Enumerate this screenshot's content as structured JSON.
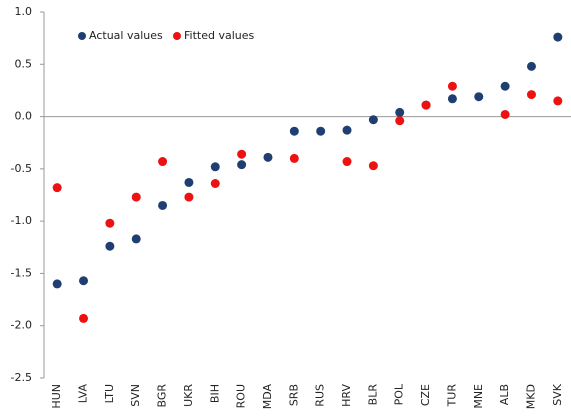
{
  "chart_data": {
    "type": "dot",
    "categories": [
      "HUN",
      "LVA",
      "LTU",
      "SVN",
      "BGR",
      "UKR",
      "BIH",
      "ROU",
      "MDA",
      "SRB",
      "RUS",
      "HRV",
      "BLR",
      "POL",
      "CZE",
      "TUR",
      "MNE",
      "ALB",
      "MKD",
      "SVK"
    ],
    "series": [
      {
        "name": "Actual values",
        "color": "#1f3f73",
        "values": [
          -1.6,
          -1.57,
          -1.24,
          -1.17,
          -0.85,
          -0.63,
          -0.48,
          -0.46,
          -0.39,
          -0.14,
          -0.14,
          -0.13,
          -0.03,
          0.04,
          0.11,
          0.17,
          0.19,
          0.29,
          0.48,
          0.76
        ]
      },
      {
        "name": "Fitted values",
        "color": "#ee1111",
        "values": [
          -0.68,
          -1.93,
          -1.02,
          -0.77,
          -0.43,
          -0.77,
          -0.64,
          -0.36,
          null,
          -0.4,
          null,
          -0.43,
          -0.47,
          -0.04,
          0.11,
          0.29,
          null,
          0.02,
          0.21,
          0.15
        ]
      }
    ],
    "ylim": [
      -2.5,
      1.0
    ],
    "yticks": [
      {
        "value": -2.5,
        "label": "-2.5"
      },
      {
        "value": -2.0,
        "label": "-2.0"
      },
      {
        "value": -1.5,
        "label": "-1.5"
      },
      {
        "value": -1.0,
        "label": "-1.0"
      },
      {
        "value": -0.5,
        "label": "-0.5"
      },
      {
        "value": 0.0,
        "label": "0.0"
      },
      {
        "value": 0.5,
        "label": "0.5"
      },
      {
        "value": 1.0,
        "label": "1.0"
      }
    ],
    "grid": false,
    "legend": "top-left"
  }
}
